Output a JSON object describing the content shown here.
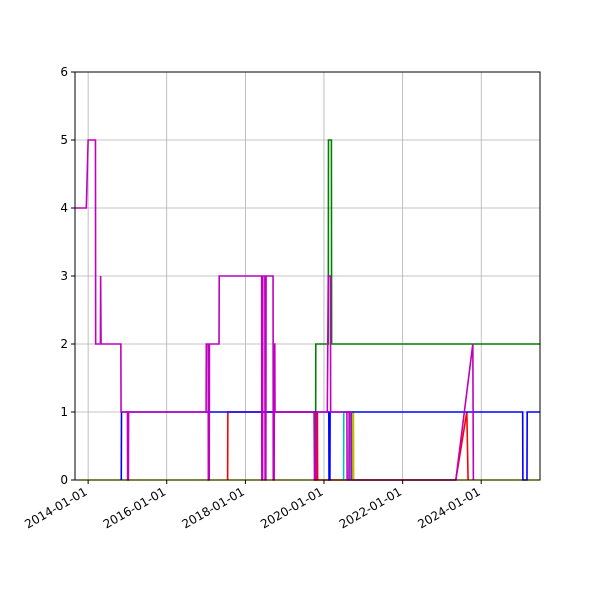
{
  "chart_data": {
    "type": "line",
    "title": "",
    "xlabel": "",
    "ylabel": "",
    "xlim": [
      "2013-09-01",
      "2025-06-30"
    ],
    "ylim": [
      0,
      6
    ],
    "grid": true,
    "legend": "none",
    "x_ticks": [
      {
        "value": "2014-01-01",
        "label": "2014-01-01"
      },
      {
        "value": "2016-01-01",
        "label": "2016-01-01"
      },
      {
        "value": "2018-01-01",
        "label": "2018-01-01"
      },
      {
        "value": "2020-01-01",
        "label": "2020-01-01"
      },
      {
        "value": "2022-01-01",
        "label": "2022-01-01"
      },
      {
        "value": "2024-01-01",
        "label": "2024-01-01"
      }
    ],
    "y_ticks": [
      {
        "value": 0,
        "label": "0"
      },
      {
        "value": 1,
        "label": "1"
      },
      {
        "value": 2,
        "label": "2"
      },
      {
        "value": 3,
        "label": "3"
      },
      {
        "value": 4,
        "label": "4"
      },
      {
        "value": 5,
        "label": "5"
      },
      {
        "value": 6,
        "label": "6"
      }
    ],
    "series": [
      {
        "color": "#ffff00",
        "values": [
          [
            "2013-10-01",
            0
          ],
          [
            "2025-06-30",
            0
          ]
        ]
      },
      {
        "color": "#ff0000",
        "values": [
          [
            "2017-07-20",
            0
          ],
          [
            "2017-07-22",
            1
          ],
          [
            "2019-10-10",
            1
          ],
          [
            "2019-10-12",
            0
          ],
          [
            "2019-10-25",
            0
          ],
          [
            "2019-10-27",
            1
          ],
          [
            "2019-11-01",
            1
          ],
          [
            "2019-11-03",
            0
          ],
          [
            "2023-05-10",
            0
          ],
          [
            "2023-08-20",
            1
          ],
          [
            "2023-09-01",
            0
          ]
        ]
      },
      {
        "color": "#00bfbf",
        "values": [
          [
            "2020-07-01",
            0
          ],
          [
            "2020-07-03",
            1
          ],
          [
            "2020-09-01",
            1
          ],
          [
            "2020-09-03",
            0
          ]
        ]
      },
      {
        "color": "#bfbf00",
        "values": [
          [
            "2020-09-20",
            0
          ],
          [
            "2020-09-22",
            1
          ],
          [
            "2020-10-01",
            1
          ],
          [
            "2020-10-03",
            0
          ]
        ]
      },
      {
        "color": "#008000",
        "values": [
          [
            "2019-10-15",
            0
          ],
          [
            "2019-10-17",
            2
          ],
          [
            "2020-02-10",
            2
          ],
          [
            "2020-02-12",
            5
          ],
          [
            "2020-03-10",
            5
          ],
          [
            "2020-03-12",
            2
          ],
          [
            "2025-06-30",
            2
          ]
        ]
      },
      {
        "color": "#0000ff",
        "values": [
          [
            "2014-11-05",
            0
          ],
          [
            "2014-11-07",
            1
          ],
          [
            "2020-02-15",
            1
          ],
          [
            "2020-02-17",
            0
          ],
          [
            "2020-02-25",
            0
          ],
          [
            "2020-02-27",
            1
          ],
          [
            "2025-01-20",
            1
          ],
          [
            "2025-01-22",
            0
          ],
          [
            "2025-03-01",
            0
          ],
          [
            "2025-03-03",
            1
          ],
          [
            "2025-06-30",
            1
          ]
        ]
      },
      {
        "color": "#bf00bf",
        "values": [
          [
            "2013-09-01",
            4
          ],
          [
            "2013-12-15",
            4
          ],
          [
            "2014-01-01",
            5
          ],
          [
            "2014-03-10",
            5
          ],
          [
            "2014-03-12",
            2
          ],
          [
            "2014-04-25",
            2
          ],
          [
            "2014-04-27",
            3
          ],
          [
            "2014-05-01",
            2
          ],
          [
            "2014-11-01",
            2
          ],
          [
            "2014-11-03",
            1
          ],
          [
            "2015-01-01",
            1
          ],
          [
            "2015-01-03",
            0
          ],
          [
            "2015-01-10",
            0
          ],
          [
            "2015-01-12",
            1
          ],
          [
            "2017-01-01",
            1
          ],
          [
            "2017-01-03",
            2
          ],
          [
            "2017-01-20",
            2
          ],
          [
            "2017-01-22",
            0
          ],
          [
            "2017-01-30",
            0
          ],
          [
            "2017-02-01",
            2
          ],
          [
            "2017-05-01",
            2
          ],
          [
            "2017-05-03",
            3
          ],
          [
            "2018-06-01",
            3
          ],
          [
            "2018-06-03",
            0
          ],
          [
            "2018-06-10",
            0
          ],
          [
            "2018-06-12",
            3
          ],
          [
            "2018-07-01",
            3
          ],
          [
            "2018-07-03",
            0
          ],
          [
            "2018-07-10",
            0
          ],
          [
            "2018-07-12",
            3
          ],
          [
            "2018-09-15",
            3
          ],
          [
            "2018-09-17",
            0
          ],
          [
            "2018-09-25",
            0
          ],
          [
            "2018-09-27",
            2
          ],
          [
            "2018-10-01",
            2
          ],
          [
            "2018-10-03",
            1
          ],
          [
            "2019-10-01",
            1
          ],
          [
            "2019-10-05",
            0
          ],
          [
            "2019-10-20",
            0
          ],
          [
            "2019-10-22",
            1
          ],
          [
            "2020-02-01",
            1
          ],
          [
            "2020-02-10",
            3
          ],
          [
            "2020-03-01",
            3
          ],
          [
            "2020-03-03",
            1
          ],
          [
            "2020-08-01",
            1
          ],
          [
            "2020-08-03",
            0
          ],
          [
            "2020-08-20",
            0
          ],
          [
            "2020-08-22",
            1
          ],
          [
            "2020-09-10",
            1
          ],
          [
            "2020-09-12",
            0
          ],
          [
            "2023-05-10",
            0
          ],
          [
            "2023-10-15",
            2
          ],
          [
            "2023-10-20",
            0
          ]
        ]
      }
    ]
  }
}
